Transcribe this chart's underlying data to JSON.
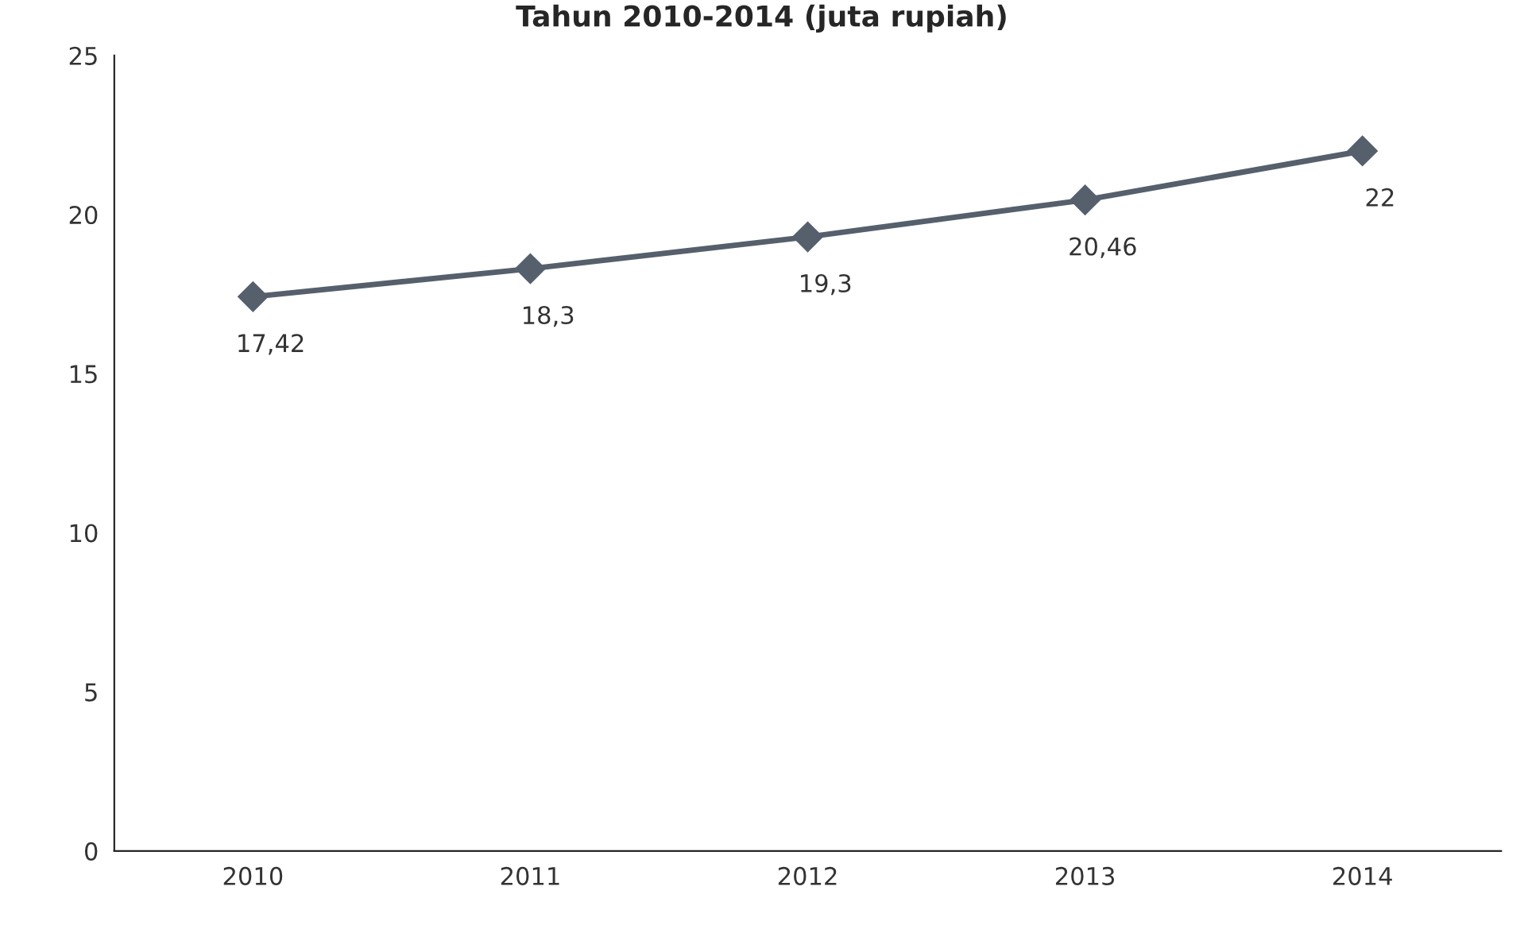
{
  "chart_data": {
    "type": "line",
    "title": "Tahun 2010-2014 (juta rupiah)",
    "categories": [
      "2010",
      "2011",
      "2012",
      "2013",
      "2014"
    ],
    "series": [
      {
        "color": "#56606c",
        "values": [
          17.42,
          18.3,
          19.3,
          20.46,
          22
        ],
        "value_labels": [
          "17,42",
          "18,3",
          "19,3",
          "20,46",
          "22"
        ]
      }
    ],
    "ylim": [
      0,
      25
    ],
    "yticks": [
      0,
      5,
      10,
      15,
      20,
      25
    ],
    "marker": "diamond",
    "line_style": "solid",
    "grid": false,
    "legend": false
  }
}
